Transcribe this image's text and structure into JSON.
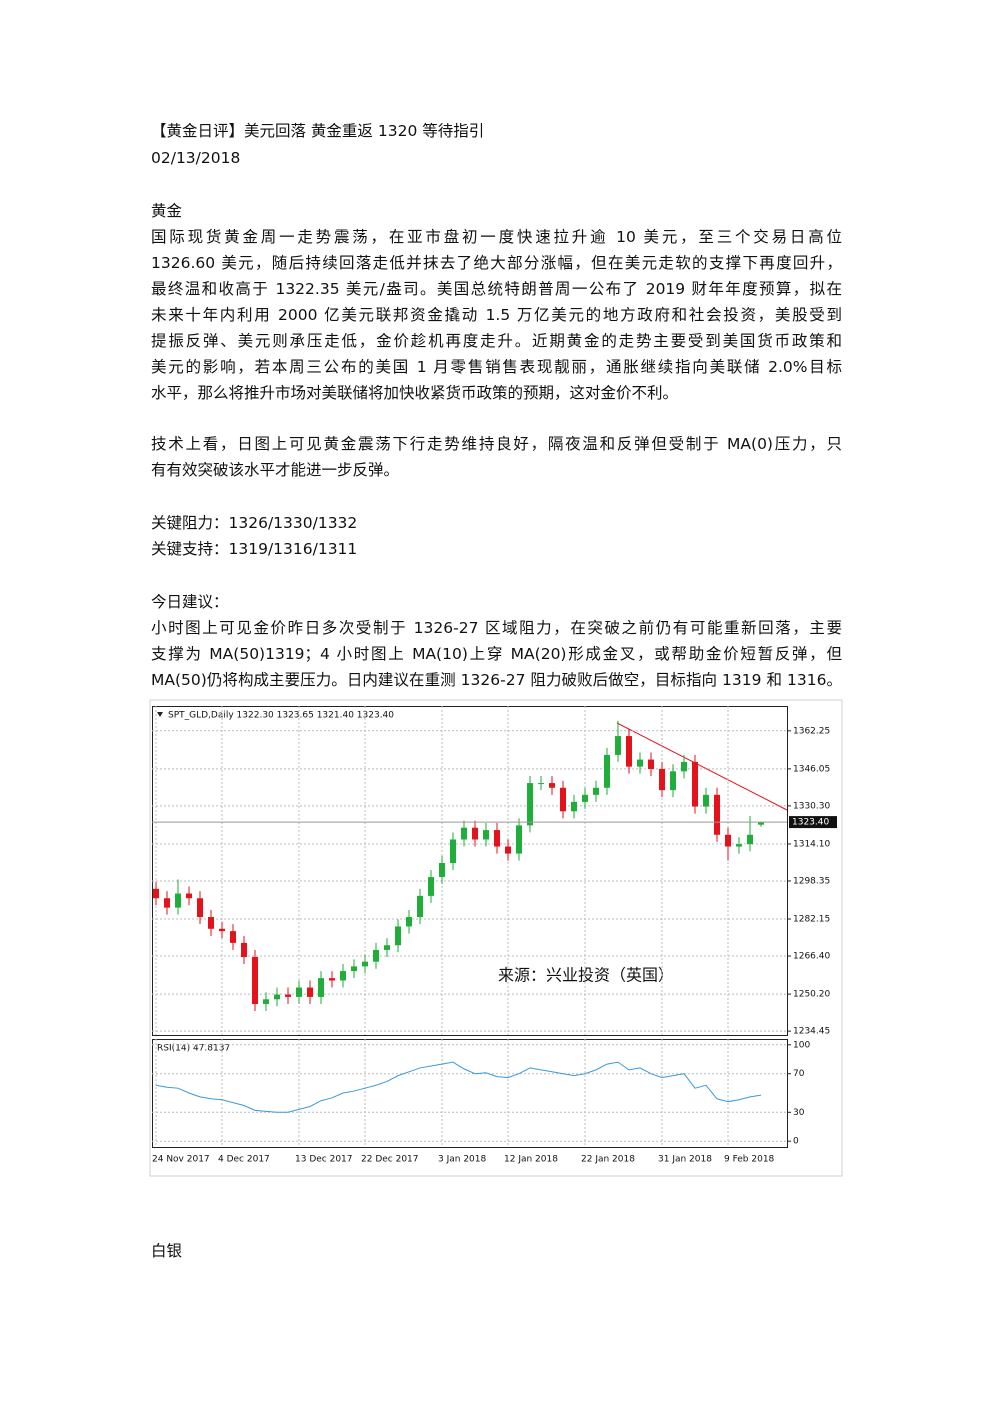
{
  "title": "【黄金日评】美元回落 黄金重返 1320 等待指引",
  "date": "02/13/2018",
  "gold": {
    "heading": "黄金",
    "paragraph": [
      "国际现货黄金周一走势震荡，在亚市盘初一度快速拉升逾 10 美元，至三个交易日高位",
      "1326.60 美元，随后持续回落走低并抹去了绝大部分涨幅，但在美元走软的支撑下再度回升，",
      "最终温和收高于 1322.35 美元/盎司。美国总统特朗普周一公布了 2019 财年年度预算，拟在",
      "未来十年内利用 2000 亿美元联邦资金撬动 1.5 万亿美元的地方政府和社会投资，美股受到",
      "提振反弹、美元则承压走低，金价趁机再度走升。近期黄金的走势主要受到美国货币政策和",
      "美元的影响，若本周三公布的美国 1 月零售销售表现靓丽，通胀继续指向美联储 2.0%目标",
      "水平，那么将推升市场对美联储将加快收紧货币政策的预期，这对金价不利。"
    ],
    "technical": [
      "技术上看，日图上可见黄金震荡下行走势维持良好，隔夜温和反弹但受制于 MA(0)压力，只",
      "有有效突破该水平才能进一步反弹。"
    ],
    "resistance": "关键阻力：1326/1330/1332",
    "support": "关键支持：1319/1316/1311",
    "advice_heading": "今日建议：",
    "advice": [
      "小时图上可见金价昨日多次受制于 1326-27 区域阻力，在突破之前仍有可能重新回落，主要",
      "支撑为 MA(50)1319；4 小时图上 MA(10)上穿 MA(20)形成金叉，或帮助金价短暂反弹，但",
      "MA(50)仍将构成主要压力。日内建议在重测 1326-27 阻力破败后做空，目标指向 1319 和 1316。"
    ]
  },
  "chart_data": {
    "type": "candlestick",
    "header": "SPT_GLD,Daily  1322.30 1323.65 1321.40 1323.40",
    "watermark": "来源：兴业投资（英国）",
    "categories": [
      "24 Nov 2017",
      null,
      null,
      null,
      null,
      null,
      "4 Dec 2017",
      null,
      null,
      null,
      null,
      null,
      null,
      "13 Dec 2017",
      null,
      null,
      null,
      null,
      null,
      "22 Dec 2017",
      null,
      null,
      null,
      null,
      null,
      null,
      "3 Jan 2018",
      null,
      null,
      null,
      null,
      null,
      "12 Jan 2018",
      null,
      null,
      null,
      null,
      null,
      null,
      "22 Jan 2018",
      null,
      null,
      null,
      null,
      null,
      null,
      "31 Jan 2018",
      null,
      null,
      null,
      null,
      null,
      "9 Feb 2018",
      null,
      null,
      null
    ],
    "open": [
      1295,
      1291,
      1287,
      1293,
      1291,
      1283,
      1278,
      1277,
      1272,
      1266,
      1246,
      1248,
      1250,
      1249,
      1253,
      1249,
      1257,
      1256,
      1260,
      1262,
      1264,
      1269,
      1271,
      1279,
      1283,
      1292,
      1300,
      1306,
      1316,
      1321,
      1316,
      1320,
      1313,
      1310,
      1322,
      1340,
      1340,
      1338,
      1328,
      1332,
      1335,
      1338,
      1352,
      1360,
      1347,
      1350,
      1346,
      1337,
      1345,
      1349,
      1330,
      1335,
      1318,
      1313,
      1314,
      1322.3
    ],
    "high": [
      1298,
      1294,
      1299,
      1296,
      1294,
      1286,
      1281,
      1280,
      1275,
      1269,
      1251,
      1253,
      1253,
      1256,
      1256,
      1260,
      1260,
      1263,
      1265,
      1267,
      1272,
      1274,
      1282,
      1286,
      1295,
      1303,
      1309,
      1319,
      1324,
      1324,
      1323,
      1323,
      1316,
      1325,
      1343,
      1343,
      1343,
      1341,
      1335,
      1338,
      1341,
      1355,
      1366.5,
      1363,
      1353,
      1353,
      1349,
      1348,
      1352,
      1352,
      1338,
      1338,
      1321,
      1317,
      1326,
      1323.65
    ],
    "low": [
      1288,
      1284,
      1284,
      1288,
      1280,
      1275,
      1274,
      1269,
      1263,
      1243,
      1243,
      1245,
      1246,
      1246,
      1246,
      1246,
      1253,
      1253,
      1257,
      1259,
      1261,
      1266,
      1268,
      1276,
      1280,
      1289,
      1297,
      1303,
      1313,
      1313,
      1313,
      1310,
      1307,
      1307,
      1319,
      1337,
      1335,
      1325,
      1325,
      1329,
      1332,
      1335,
      1349,
      1344,
      1344,
      1343,
      1334,
      1334,
      1342,
      1327,
      1327,
      1315,
      1307,
      1310,
      1311,
      1321.4
    ],
    "close": [
      1291,
      1287,
      1293,
      1291,
      1283,
      1278,
      1277,
      1272,
      1266,
      1246,
      1248,
      1250,
      1249,
      1253,
      1249,
      1257,
      1256,
      1260,
      1262,
      1264,
      1269,
      1271,
      1279,
      1283,
      1292,
      1300,
      1306,
      1316,
      1321,
      1316,
      1320,
      1313,
      1310,
      1322,
      1340,
      1340,
      1338,
      1328,
      1332,
      1335,
      1338,
      1352,
      1360,
      1347,
      1350,
      1346,
      1337,
      1345,
      1349,
      1330,
      1335,
      1318,
      1313,
      1314,
      1318,
      1323.4
    ],
    "up_color": "#1fae3a",
    "down_color": "#e3121b",
    "ylim": [
      1232.8,
      1372.8
    ],
    "yticks": [
      1362.25,
      1346.05,
      {
        "value": 1330.3,
        "label": "1330.30"
      },
      {
        "value": 1314.1,
        "label": "1314.10"
      },
      1298.35,
      1282.15,
      {
        "value": 1266.4,
        "label": "1266.40"
      },
      {
        "value": 1250.2,
        "label": "1250.20"
      },
      1234.45
    ],
    "last_price": {
      "value": 1323.4,
      "label": "1323.40"
    },
    "grid": true,
    "rsi": {
      "label": "RSI(14) 47.8137",
      "color": "#3a9ad9",
      "values": [
        58,
        56,
        55,
        50,
        46,
        44,
        43,
        40,
        37,
        32,
        31,
        30,
        30,
        33,
        36,
        42,
        45,
        50,
        52,
        55,
        58,
        62,
        68,
        72,
        76,
        78,
        80,
        82,
        75,
        70,
        71,
        67,
        66,
        70,
        76,
        74,
        72,
        70,
        68,
        70,
        74,
        80,
        82,
        74,
        76,
        70,
        66,
        68,
        70,
        55,
        58,
        44,
        41,
        43,
        46,
        47.8137
      ],
      "ylim": [
        -6,
        106
      ],
      "yticks": [
        0,
        30,
        70,
        100
      ]
    }
  }
}
